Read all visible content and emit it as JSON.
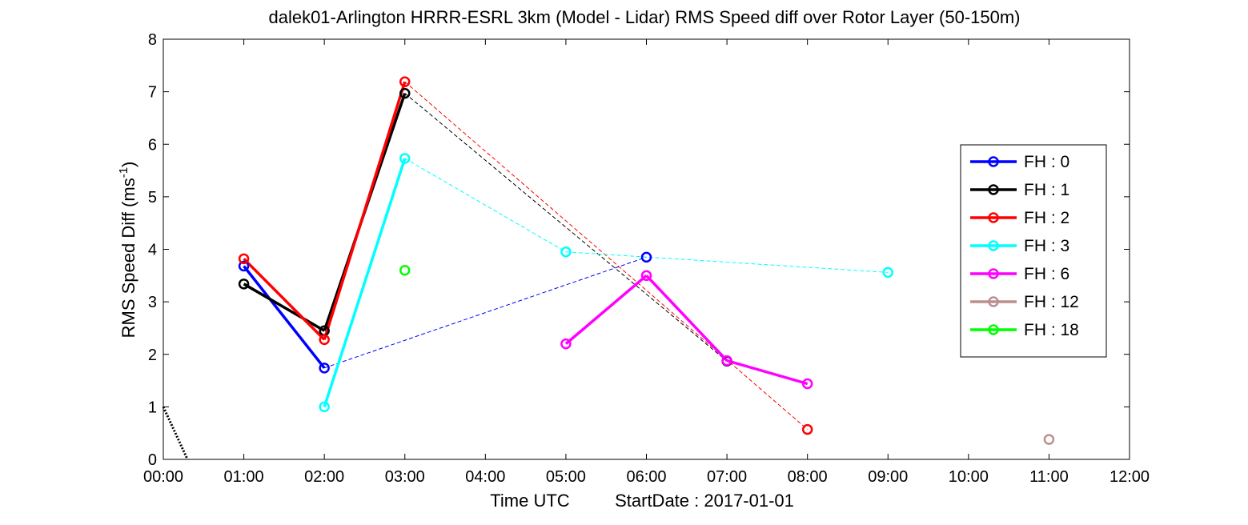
{
  "chart_data": {
    "type": "line",
    "title": "dalek01-Arlington HRRR-ESRL 3km (Model - Lidar) RMS Speed diff over Rotor Layer (50-150m)",
    "xlabel_main": "Time UTC",
    "xlabel_date": "StartDate : 2017-01-01",
    "ylabel_main": "RMS Speed Diff (ms",
    "ylabel_sup": "-1",
    "ylabel_close": ")",
    "xlim": [
      0,
      12
    ],
    "ylim": [
      0,
      8
    ],
    "x_ticks": [
      0,
      1,
      2,
      3,
      4,
      5,
      6,
      7,
      8,
      9,
      10,
      11,
      12
    ],
    "x_tick_labels": [
      "00:00",
      "01:00",
      "02:00",
      "03:00",
      "04:00",
      "05:00",
      "06:00",
      "07:00",
      "08:00",
      "09:00",
      "10:00",
      "11:00",
      "12:00"
    ],
    "y_ticks": [
      0,
      1,
      2,
      3,
      4,
      5,
      6,
      7,
      8
    ],
    "y_tick_labels": [
      "0",
      "1",
      "2",
      "3",
      "4",
      "5",
      "6",
      "7",
      "8"
    ],
    "grid": false,
    "legend_position": "right",
    "series": [
      {
        "name": "FH : 0",
        "color": "#0000ff",
        "points": [
          [
            1,
            3.68
          ],
          [
            2,
            1.74
          ],
          [
            6,
            3.85
          ]
        ],
        "segments": [
          [
            0,
            1,
            "solid"
          ],
          [
            1,
            2,
            "dashed"
          ]
        ]
      },
      {
        "name": "FH : 1",
        "color": "#000000",
        "points": [
          [
            1,
            3.34
          ],
          [
            2,
            2.45
          ],
          [
            3,
            6.97
          ],
          [
            7,
            1.87
          ]
        ],
        "segments": [
          [
            0,
            1,
            "solid"
          ],
          [
            1,
            2,
            "solid"
          ],
          [
            2,
            3,
            "dashed"
          ]
        ]
      },
      {
        "name": "FH : 2",
        "color": "#ff0000",
        "points": [
          [
            1,
            3.82
          ],
          [
            2,
            2.28
          ],
          [
            3,
            7.19
          ],
          [
            8,
            0.57
          ]
        ],
        "segments": [
          [
            0,
            1,
            "solid"
          ],
          [
            1,
            2,
            "solid"
          ],
          [
            2,
            3,
            "dashed"
          ]
        ]
      },
      {
        "name": "FH : 3",
        "color": "#00ffff",
        "points": [
          [
            2,
            1.0
          ],
          [
            3,
            5.73
          ],
          [
            5,
            3.95
          ],
          [
            9,
            3.56
          ]
        ],
        "segments": [
          [
            0,
            1,
            "solid"
          ],
          [
            1,
            2,
            "dashed"
          ],
          [
            2,
            3,
            "dashed"
          ]
        ]
      },
      {
        "name": "FH : 6",
        "color": "#ff00ff",
        "points": [
          [
            5,
            2.2
          ],
          [
            6,
            3.5
          ],
          [
            7,
            1.88
          ],
          [
            8,
            1.44
          ]
        ],
        "segments": [
          [
            0,
            1,
            "solid"
          ],
          [
            1,
            2,
            "solid"
          ],
          [
            2,
            3,
            "solid"
          ]
        ]
      },
      {
        "name": "FH : 12",
        "color": "#bc8f8f",
        "points": [
          [
            11,
            0.38
          ]
        ],
        "segments": []
      },
      {
        "name": "FH : 18",
        "color": "#00ff00",
        "points": [
          [
            3,
            3.6
          ]
        ],
        "segments": []
      }
    ],
    "reference_line": {
      "color": "#000000",
      "style": "dotted",
      "points": [
        [
          0,
          1.0
        ],
        [
          0.3,
          0
        ]
      ]
    }
  }
}
